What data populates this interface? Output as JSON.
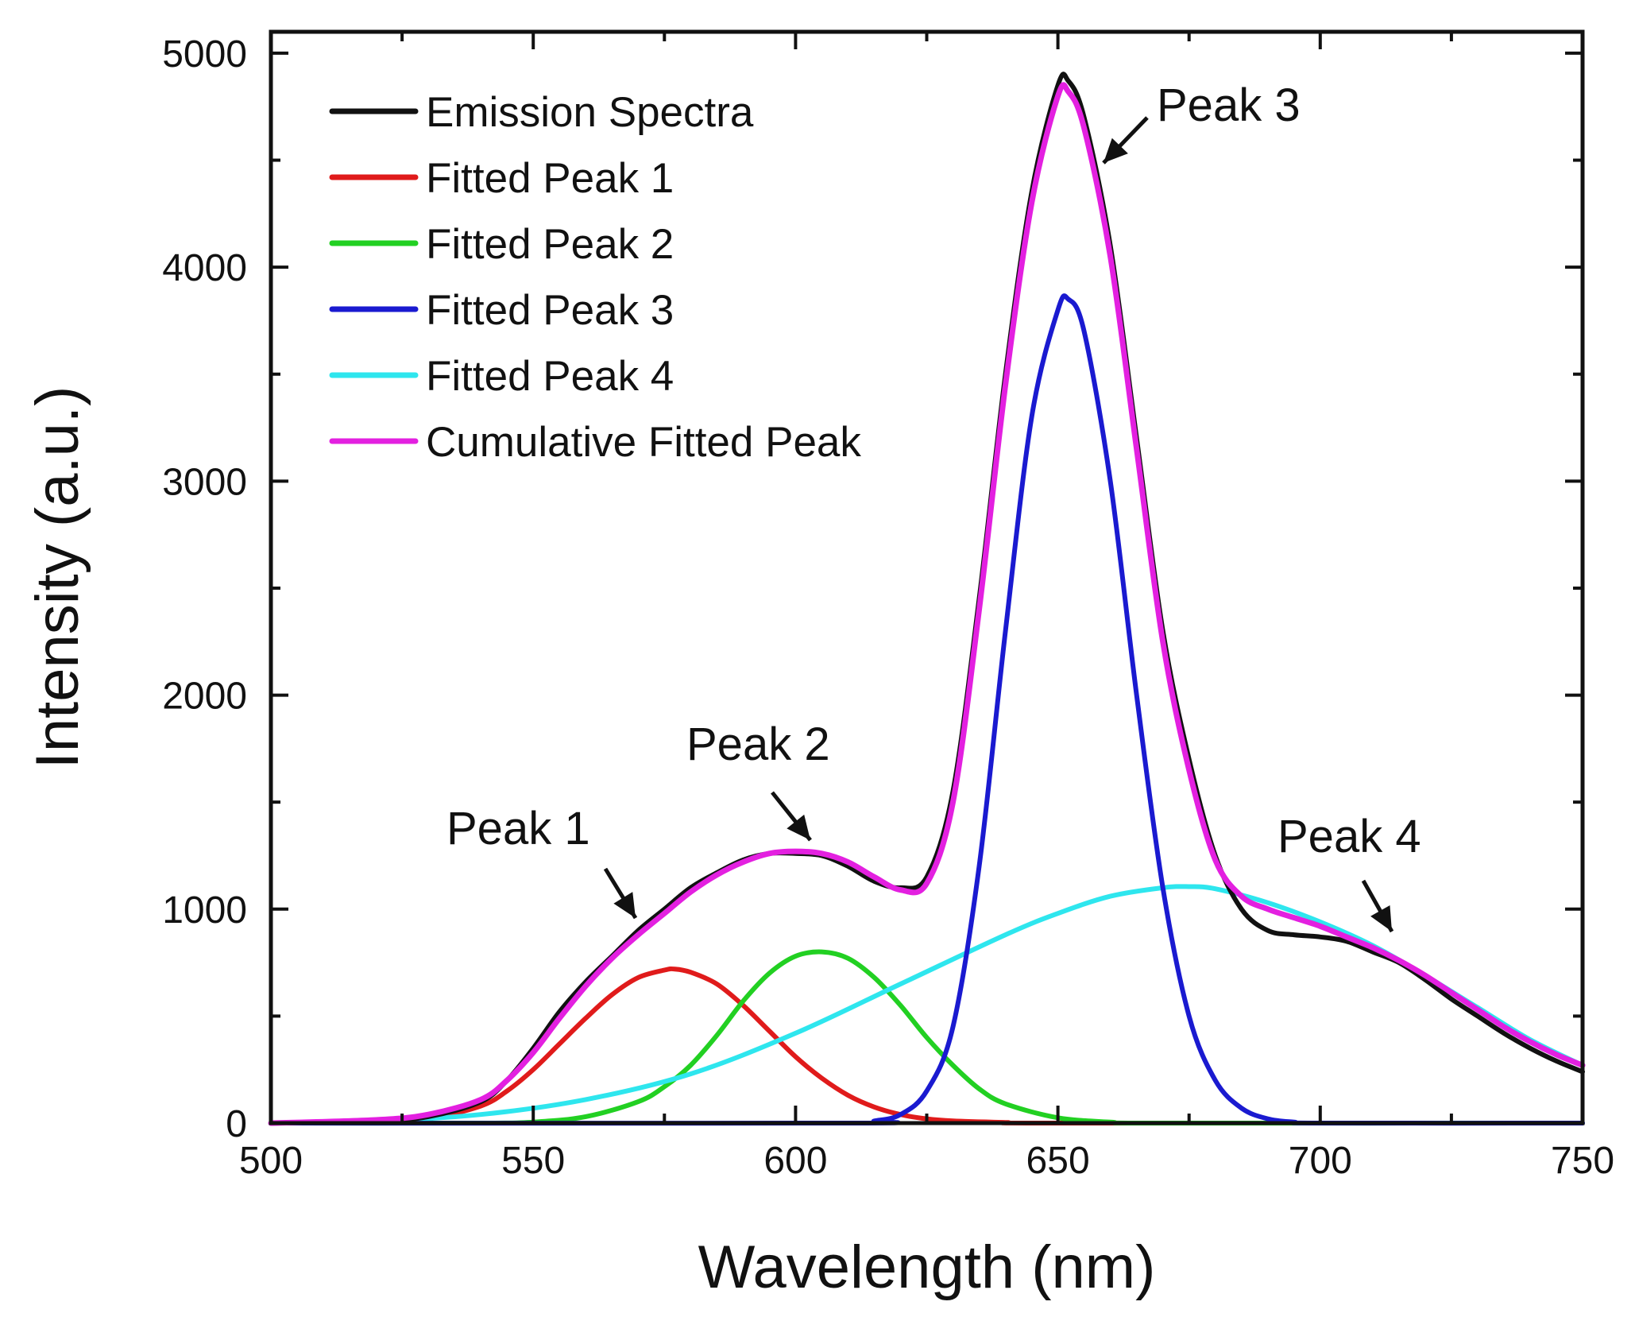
{
  "chart_data": {
    "type": "line",
    "title": "",
    "xlabel": "Wavelength (nm)",
    "ylabel": "Intensity (a.u.)",
    "xlim": [
      500,
      750
    ],
    "ylim": [
      0,
      5100
    ],
    "xticks": [
      500,
      550,
      600,
      650,
      700,
      750
    ],
    "yticks": [
      0,
      1000,
      2000,
      3000,
      4000,
      5000
    ],
    "grid": false,
    "legend_position": "top-left",
    "series": [
      {
        "name": "Emission Spectra",
        "color": "#111111",
        "x": [
          500,
          520,
          530,
          540,
          545,
          550,
          555,
          560,
          565,
          570,
          575,
          580,
          585,
          590,
          595,
          600,
          605,
          610,
          615,
          620,
          625,
          630,
          635,
          640,
          645,
          650,
          652,
          655,
          660,
          665,
          670,
          675,
          680,
          685,
          690,
          695,
          700,
          705,
          710,
          715,
          720,
          725,
          730,
          735,
          740,
          745,
          750
        ],
        "y": [
          0,
          10,
          30,
          100,
          200,
          350,
          520,
          660,
          780,
          900,
          1000,
          1100,
          1170,
          1230,
          1260,
          1260,
          1250,
          1200,
          1130,
          1100,
          1150,
          1550,
          2450,
          3500,
          4350,
          4850,
          4870,
          4700,
          4100,
          3200,
          2300,
          1700,
          1250,
          1000,
          900,
          880,
          870,
          850,
          800,
          750,
          670,
          580,
          500,
          420,
          350,
          290,
          240
        ]
      },
      {
        "name": "Fitted Peak 1",
        "color": "#e01b1b",
        "x": [
          500,
          520,
          530,
          540,
          545,
          550,
          555,
          560,
          565,
          570,
          575,
          577,
          580,
          585,
          590,
          595,
          600,
          605,
          610,
          615,
          620,
          625,
          630,
          640,
          650,
          750
        ],
        "y": [
          0,
          5,
          20,
          80,
          150,
          250,
          370,
          490,
          600,
          680,
          715,
          720,
          705,
          650,
          550,
          430,
          310,
          210,
          130,
          75,
          40,
          20,
          10,
          3,
          0,
          0
        ]
      },
      {
        "name": "Fitted Peak 2",
        "color": "#22d022",
        "x": [
          500,
          540,
          550,
          560,
          570,
          575,
          580,
          585,
          590,
          595,
          600,
          605,
          610,
          615,
          620,
          625,
          630,
          635,
          640,
          650,
          660,
          670,
          750
        ],
        "y": [
          0,
          0,
          5,
          30,
          100,
          170,
          270,
          410,
          570,
          700,
          780,
          800,
          770,
          680,
          550,
          400,
          270,
          160,
          90,
          25,
          5,
          0,
          0
        ]
      },
      {
        "name": "Fitted Peak 3",
        "color": "#1a1ad0",
        "x": [
          500,
          610,
          615,
          620,
          625,
          630,
          635,
          640,
          645,
          650,
          652,
          655,
          660,
          665,
          670,
          675,
          680,
          685,
          690,
          695,
          700,
          750
        ],
        "y": [
          0,
          0,
          10,
          40,
          150,
          450,
          1200,
          2300,
          3300,
          3800,
          3850,
          3700,
          3000,
          2000,
          1100,
          500,
          200,
          70,
          20,
          5,
          0,
          0
        ]
      },
      {
        "name": "Fitted Peak 4",
        "color": "#2ee6ee",
        "x": [
          500,
          520,
          540,
          560,
          580,
          600,
          620,
          640,
          650,
          660,
          670,
          675,
          680,
          690,
          700,
          710,
          720,
          730,
          740,
          750
        ],
        "y": [
          0,
          10,
          40,
          110,
          230,
          420,
          650,
          880,
          980,
          1060,
          1100,
          1105,
          1095,
          1030,
          940,
          830,
          690,
          540,
          390,
          270
        ]
      },
      {
        "name": "Cumulative Fitted Peak",
        "color": "#e320e0",
        "x": [
          500,
          520,
          530,
          540,
          545,
          550,
          555,
          560,
          565,
          570,
          575,
          580,
          585,
          590,
          595,
          600,
          605,
          610,
          615,
          620,
          625,
          630,
          635,
          640,
          645,
          650,
          652,
          655,
          660,
          665,
          670,
          675,
          680,
          685,
          690,
          695,
          700,
          705,
          710,
          715,
          720,
          725,
          730,
          735,
          740,
          745,
          750
        ],
        "y": [
          0,
          15,
          40,
          110,
          200,
          330,
          490,
          640,
          770,
          880,
          980,
          1080,
          1160,
          1220,
          1260,
          1270,
          1260,
          1220,
          1150,
          1090,
          1120,
          1500,
          2400,
          3450,
          4300,
          4800,
          4820,
          4650,
          4050,
          3150,
          2250,
          1650,
          1230,
          1060,
          1000,
          960,
          920,
          870,
          820,
          760,
          690,
          610,
          530,
          450,
          380,
          320,
          270
        ]
      }
    ],
    "annotations": [
      {
        "text": "Peak 1",
        "x": 572,
        "y": 960
      },
      {
        "text": "Peak 2",
        "x": 604,
        "y": 1270
      },
      {
        "text": "Peak 3",
        "x": 654,
        "y": 4570
      },
      {
        "text": "Peak 4",
        "x": 714,
        "y": 840
      }
    ]
  }
}
